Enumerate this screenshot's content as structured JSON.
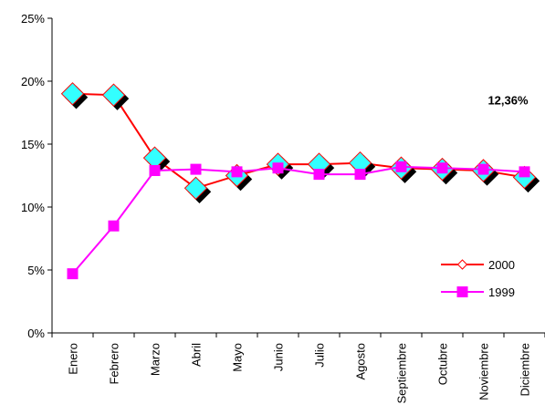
{
  "chart_data": {
    "type": "line",
    "title": "",
    "xlabel": "",
    "ylabel": "",
    "categories": [
      "Enero",
      "Febrero",
      "Marzo",
      "Abril",
      "Mayo",
      "Junio",
      "Julio",
      "Agosto",
      "Septiembre",
      "Octubre",
      "Noviembre",
      "Diciembre"
    ],
    "ylim": [
      0,
      25
    ],
    "yticks": [
      "0%",
      "5%",
      "10%",
      "15%",
      "20%",
      "25%"
    ],
    "ytick_values": [
      0,
      5,
      10,
      15,
      20,
      25
    ],
    "grid": false,
    "legend_position": "right",
    "series": [
      {
        "name": "2000",
        "values": [
          19.0,
          18.9,
          13.9,
          11.5,
          12.5,
          13.4,
          13.4,
          13.5,
          13.1,
          13.0,
          12.9,
          12.36
        ],
        "line_color": "#ff0000",
        "marker": "diamond",
        "marker_fill": "#33ffff",
        "marker_shadow": "#000000"
      },
      {
        "name": "1999",
        "values": [
          4.7,
          8.5,
          12.9,
          13.0,
          12.8,
          13.1,
          12.6,
          12.6,
          13.2,
          13.1,
          13.0,
          12.8
        ],
        "line_color": "#ff00ff",
        "marker": "square",
        "marker_fill": "#ff00ff"
      }
    ],
    "annotations": [
      {
        "text": "12,36%",
        "series": "2000",
        "index": 11
      }
    ]
  }
}
